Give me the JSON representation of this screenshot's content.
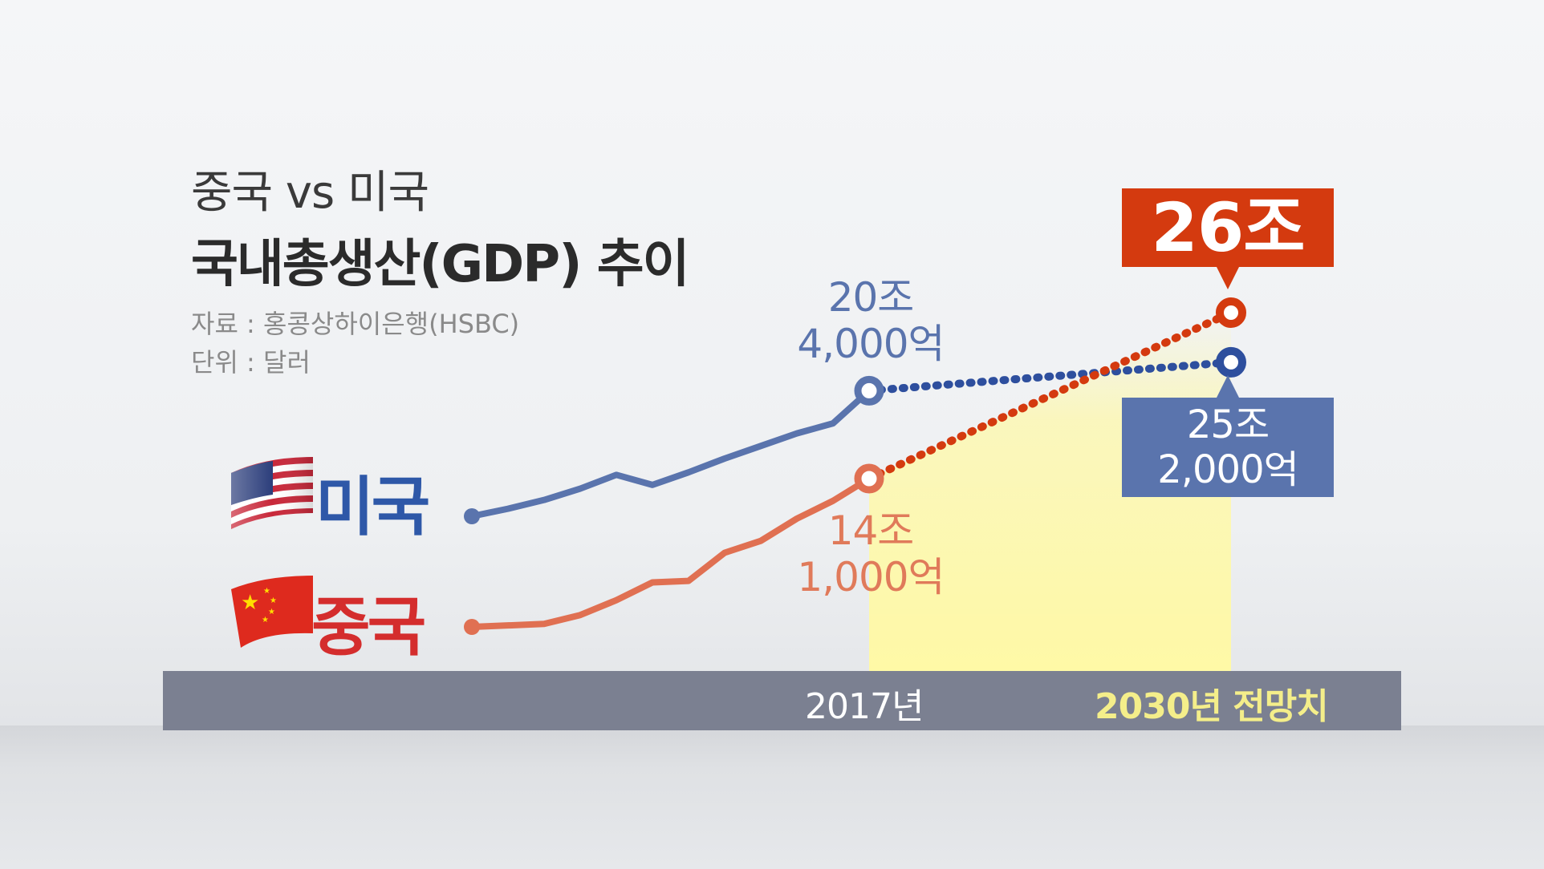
{
  "title_line1": "중국 vs 미국",
  "title_line2": "국내총생산(GDP) 추이",
  "source": "자료 : 홍콩상하이은행(HSBC)",
  "unit": "단위 : 달러",
  "colors": {
    "us": "#5a74ad",
    "us_dotted": "#2e4f9e",
    "cn": "#e07052",
    "cn_dotted": "#d43a0f",
    "projection_highlight": "#fff9a6"
  },
  "legend": [
    {
      "label": "미국",
      "icon": "us-flag-icon"
    },
    {
      "label": "중국",
      "icon": "china-flag-icon"
    }
  ],
  "callouts": {
    "cn_2030": "26조",
    "us_2030_line1": "25조",
    "us_2030_line2": "2,000억"
  },
  "labels": {
    "us_2017_line1": "20조",
    "us_2017_line2": "4,000억",
    "cn_2017_line1": "14조",
    "cn_2017_line2": "1,000억"
  },
  "chart_data": {
    "type": "line",
    "x_ticks": [
      "2017년",
      "2030년 전망치"
    ],
    "series": [
      {
        "name": "미국",
        "historical_relative": [
          0.0,
          0.06,
          0.13,
          0.22,
          0.33,
          0.25,
          0.35,
          0.46,
          0.56,
          0.66,
          0.74,
          0.82
        ],
        "value_2017_trillion_usd": 20.4,
        "value_2030_trillion_usd": 25.2,
        "values": [
          20.4,
          25.2
        ]
      },
      {
        "name": "중국",
        "historical_relative": [
          0.0,
          0.01,
          0.02,
          0.08,
          0.18,
          0.3,
          0.31,
          0.5,
          0.58,
          0.73,
          0.85,
          0.98
        ],
        "value_2017_trillion_usd": 14.1,
        "value_2030_trillion_usd": 26.0,
        "values": [
          14.1,
          26.0
        ]
      }
    ],
    "projection_style": "dotted",
    "grid": false,
    "legend_position": "left"
  }
}
